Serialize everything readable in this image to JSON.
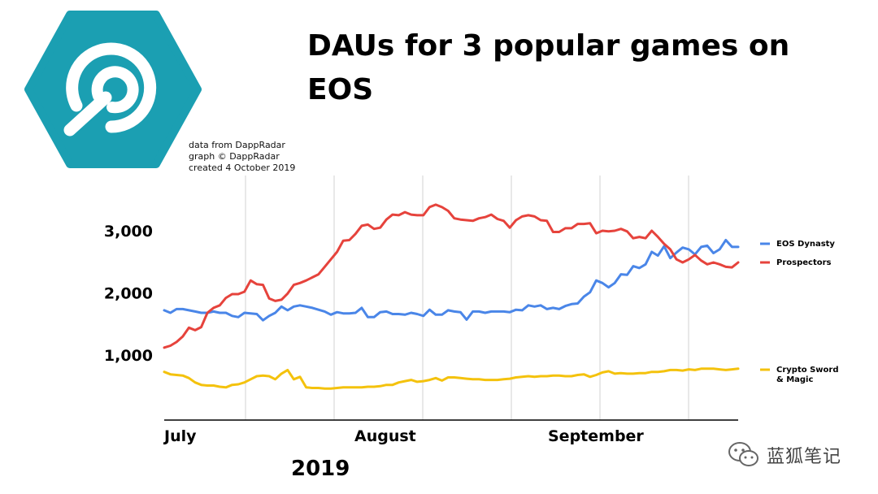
{
  "title": "DAUs for 3 popular games on EOS",
  "credits": [
    "data from DappRadar",
    "graph © DappRadar",
    "created 4 October 2019"
  ],
  "year_label": "2019",
  "watermark_text": "蓝狐笔记",
  "colors": {
    "logo": "#1B9FB2",
    "eos_dynasty": "#4A86E8",
    "prospectors": "#E6433C",
    "crypto_sword": "#F4C20D",
    "grid": "#d0d0d0"
  },
  "chart_data": {
    "type": "line",
    "xlabel": "",
    "ylabel": "",
    "x_tick_labels": [
      "July",
      "August",
      "September"
    ],
    "y_ticks": [
      1000,
      2000,
      3000
    ],
    "y_tick_labels": [
      "1,000",
      "2,000",
      "3,000"
    ],
    "ylim": [
      0,
      3600
    ],
    "grid": "vertical",
    "legend_position": "right",
    "series": [
      {
        "name": "EOS Dynasty",
        "values": [
          1720,
          1680,
          1740,
          1740,
          1720,
          1700,
          1680,
          1680,
          1700,
          1680,
          1680,
          1630,
          1610,
          1680,
          1670,
          1660,
          1560,
          1630,
          1680,
          1780,
          1720,
          1780,
          1800,
          1780,
          1760,
          1730,
          1700,
          1650,
          1690,
          1670,
          1670,
          1680,
          1760,
          1610,
          1610,
          1690,
          1700,
          1660,
          1660,
          1650,
          1680,
          1660,
          1630,
          1730,
          1650,
          1650,
          1720,
          1700,
          1690,
          1570,
          1700,
          1700,
          1680,
          1700,
          1700,
          1700,
          1690,
          1730,
          1720,
          1800,
          1780,
          1800,
          1740,
          1760,
          1740,
          1790,
          1820,
          1830,
          1940,
          2010,
          2200,
          2160,
          2090,
          2160,
          2300,
          2290,
          2430,
          2400,
          2460,
          2660,
          2600,
          2750,
          2560,
          2650,
          2730,
          2700,
          2620,
          2740,
          2760,
          2640,
          2700,
          2850,
          2740,
          2740
        ]
      },
      {
        "name": "Prospectors",
        "values": [
          1120,
          1150,
          1210,
          1300,
          1440,
          1400,
          1450,
          1680,
          1760,
          1800,
          1920,
          1980,
          1980,
          2020,
          2200,
          2140,
          2130,
          1910,
          1870,
          1890,
          1990,
          2130,
          2160,
          2200,
          2250,
          2300,
          2420,
          2540,
          2660,
          2840,
          2850,
          2950,
          3080,
          3100,
          3030,
          3050,
          3180,
          3260,
          3250,
          3300,
          3260,
          3250,
          3250,
          3380,
          3420,
          3380,
          3320,
          3200,
          3180,
          3170,
          3160,
          3200,
          3220,
          3260,
          3190,
          3160,
          3050,
          3170,
          3230,
          3250,
          3230,
          3170,
          3160,
          2980,
          2980,
          3040,
          3040,
          3110,
          3110,
          3120,
          2960,
          3000,
          2990,
          3000,
          3030,
          2990,
          2880,
          2900,
          2880,
          3000,
          2900,
          2790,
          2700,
          2540,
          2490,
          2540,
          2610,
          2520,
          2460,
          2490,
          2460,
          2420,
          2410,
          2490
        ]
      },
      {
        "name": "Crypto Sword & Magic",
        "values": [
          730,
          690,
          680,
          670,
          630,
          560,
          520,
          510,
          510,
          490,
          480,
          520,
          530,
          560,
          610,
          660,
          670,
          660,
          610,
          700,
          760,
          610,
          650,
          480,
          470,
          470,
          460,
          460,
          470,
          480,
          480,
          480,
          480,
          490,
          490,
          500,
          520,
          520,
          560,
          580,
          600,
          570,
          580,
          600,
          630,
          590,
          640,
          640,
          630,
          620,
          610,
          610,
          600,
          600,
          600,
          610,
          620,
          640,
          650,
          660,
          650,
          660,
          660,
          670,
          670,
          660,
          660,
          680,
          690,
          650,
          680,
          720,
          740,
          700,
          710,
          700,
          700,
          710,
          710,
          730,
          730,
          740,
          760,
          760,
          750,
          770,
          760,
          780,
          780,
          780,
          770,
          760,
          770,
          780
        ]
      }
    ]
  }
}
